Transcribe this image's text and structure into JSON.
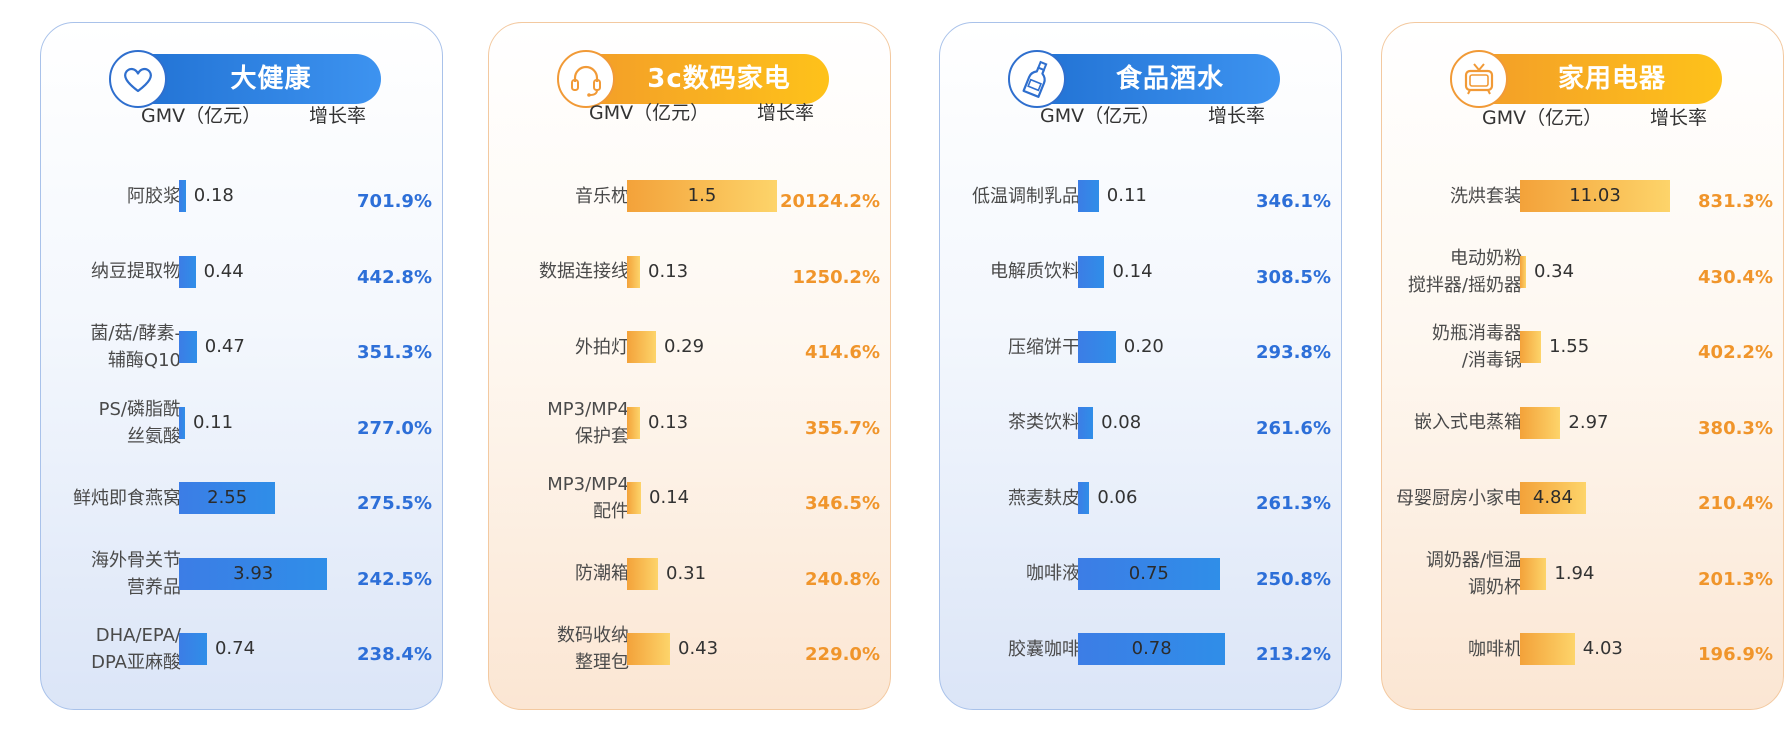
{
  "colors": {
    "blue_accent": "#2f6fce",
    "orange_accent": "#f19a37",
    "blue_pct": "#2d6fd8",
    "orange_pct": "#f0952b"
  },
  "chart_data": [
    {
      "type": "bar",
      "title": "大健康",
      "theme": "blue",
      "icon": "heart-icon",
      "gmv_header": "GMV（亿元）",
      "rate_header": "增长率",
      "scale_max": 4.5,
      "categories": [
        "阿胶浆",
        "纳豆提取物",
        "菌/菇/酵素-\n辅酶Q10",
        "PS/磷脂酰\n丝氨酸",
        "鲜炖即食燕窝",
        "海外骨关节\n营养品",
        "DHA/EPA/\nDPA亚麻酸"
      ],
      "values": [
        0.18,
        0.44,
        0.47,
        0.11,
        2.55,
        3.93,
        0.74
      ],
      "value_labels": [
        "0.18",
        "0.44",
        "0.47",
        "0.11",
        "2.55",
        "3.93",
        "0.74"
      ],
      "growth": [
        "701.9%",
        "442.8%",
        "351.3%",
        "277.0%",
        "275.5%",
        "242.5%",
        "238.4%"
      ]
    },
    {
      "type": "bar",
      "title": "3c数码家电",
      "theme": "orange",
      "icon": "headset-icon",
      "gmv_header": "GMV（亿元）",
      "rate_header": "增长率",
      "scale_max": 1.7,
      "categories": [
        "音乐枕",
        "数据连接线",
        "外拍灯",
        "MP3/MP4\n保护套",
        "MP3/MP4\n配件",
        "防潮箱",
        "数码收纳\n整理包"
      ],
      "values": [
        1.5,
        0.13,
        0.29,
        0.13,
        0.14,
        0.31,
        0.43
      ],
      "value_labels": [
        "1.5",
        "0.13",
        "0.29",
        "0.13",
        "0.14",
        "0.31",
        "0.43"
      ],
      "growth": [
        "20124.2%",
        "1250.2%",
        "414.6%",
        "355.7%",
        "346.5%",
        "240.8%",
        "229.0%"
      ]
    },
    {
      "type": "bar",
      "title": "食品酒水",
      "theme": "blue",
      "icon": "bottle-icon",
      "gmv_header": "GMV（亿元）",
      "rate_header": "增长率",
      "scale_max": 0.9,
      "categories": [
        "低温调制乳品",
        "电解质饮料",
        "压缩饼干",
        "茶类饮料",
        "燕麦麸皮",
        "咖啡液",
        "胶囊咖啡"
      ],
      "values": [
        0.11,
        0.14,
        0.2,
        0.08,
        0.06,
        0.75,
        0.78
      ],
      "value_labels": [
        "0.11",
        "0.14",
        "0.20",
        "0.08",
        "0.06",
        "0.75",
        "0.78"
      ],
      "growth": [
        "346.1%",
        "308.5%",
        "293.8%",
        "261.6%",
        "261.3%",
        "250.8%",
        "213.2%"
      ]
    },
    {
      "type": "bar",
      "title": "家用电器",
      "theme": "orange",
      "icon": "tv-icon",
      "gmv_header": "GMV（亿元）",
      "rate_header": "增长率",
      "scale_max": 12.5,
      "categories": [
        "洗烘套装",
        "电动奶粉\n搅拌器/摇奶器",
        "奶瓶消毒器\n/消毒锅",
        "嵌入式电蒸箱",
        "母婴厨房小家电",
        "调奶器/恒温\n调奶杯",
        "咖啡机"
      ],
      "values": [
        11.03,
        0.34,
        1.55,
        2.97,
        4.84,
        1.94,
        4.03
      ],
      "value_labels": [
        "11.03",
        "0.34",
        "1.55",
        "2.97",
        "4.84",
        "1.94",
        "4.03"
      ],
      "growth": [
        "831.3%",
        "430.4%",
        "402.2%",
        "380.3%",
        "210.4%",
        "201.3%",
        "196.9%"
      ]
    }
  ]
}
